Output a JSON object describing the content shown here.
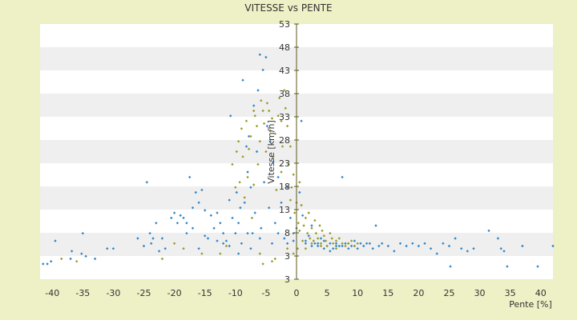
{
  "chart_data": {
    "type": "scatter",
    "title": "VITESSE vs PENTE",
    "xlabel": "Pente [%]",
    "ylabel": "Vitesse [km/h]",
    "xlim": [
      -42,
      42
    ],
    "ylim": [
      3,
      53
    ],
    "x_ticks": [
      "-40",
      "-35",
      "-30",
      "-25",
      "-20",
      "-15",
      "-10",
      "-5",
      "0",
      "5",
      "10",
      "15",
      "20",
      "25",
      "30",
      "35",
      "40"
    ],
    "y_ticks": [
      "3",
      "3",
      "8",
      "13",
      "18",
      "23",
      "28",
      "33",
      "38",
      "43",
      "48",
      "53"
    ],
    "grid": "horizontal alternating bands",
    "colors": {
      "background": "#eef0c6",
      "plot": "#ffffff",
      "band": "#efefef",
      "series_blue": "#2f86c9",
      "series_olive": "#9a9a28",
      "axis": "#5a5a1a"
    },
    "series": [
      {
        "color": "#2f86c9",
        "points": [
          [
            -41.5,
            6.0
          ],
          [
            -40.8,
            6.0
          ],
          [
            -40.2,
            6.5
          ],
          [
            -39.5,
            10.5
          ],
          [
            -37.0,
            7.0
          ],
          [
            -36.8,
            8.5
          ],
          [
            -35.2,
            8.0
          ],
          [
            -35.0,
            12.0
          ],
          [
            -34.5,
            7.5
          ],
          [
            -33.0,
            7.0
          ],
          [
            -31.0,
            9.0
          ],
          [
            -30.0,
            9.0
          ],
          [
            -26.0,
            11.0
          ],
          [
            -25.0,
            9.5
          ],
          [
            -24.5,
            22.0
          ],
          [
            -24.0,
            12.0
          ],
          [
            -23.8,
            10.0
          ],
          [
            -23.5,
            11.0
          ],
          [
            -23.0,
            14.0
          ],
          [
            -22.5,
            8.5
          ],
          [
            -22.0,
            11.0
          ],
          [
            -21.5,
            9.0
          ],
          [
            -20.0,
            16.0
          ],
          [
            -19.5,
            14.0
          ],
          [
            -19.0,
            15.5
          ],
          [
            -18.5,
            15.0
          ],
          [
            -18.0,
            14.0
          ],
          [
            -17.5,
            23.0
          ],
          [
            -17.0,
            17.0
          ],
          [
            -16.5,
            20.0
          ],
          [
            -16.0,
            18.0
          ],
          [
            -15.5,
            20.5
          ],
          [
            -15.0,
            16.5
          ],
          [
            -14.5,
            11.0
          ],
          [
            -14.0,
            15.5
          ],
          [
            -13.5,
            13.0
          ],
          [
            -13.0,
            16.0
          ],
          [
            -12.5,
            14.0
          ],
          [
            -12.0,
            12.0
          ],
          [
            -11.5,
            10.5
          ],
          [
            -11.0,
            18.5
          ],
          [
            -10.8,
            35.0
          ],
          [
            -10.5,
            15.0
          ],
          [
            -10.0,
            12.0
          ],
          [
            -9.8,
            20.0
          ],
          [
            -9.5,
            14.0
          ],
          [
            -9.2,
            17.0
          ],
          [
            -9.0,
            10.0
          ],
          [
            -8.8,
            42.0
          ],
          [
            -8.5,
            18.0
          ],
          [
            -8.2,
            29.0
          ],
          [
            -8.0,
            24.0
          ],
          [
            -7.8,
            31.0
          ],
          [
            -7.5,
            21.0
          ],
          [
            -7.2,
            12.0
          ],
          [
            -7.0,
            37.0
          ],
          [
            -6.8,
            16.0
          ],
          [
            -6.5,
            28.0
          ],
          [
            -6.3,
            40.0
          ],
          [
            -6.0,
            47.0
          ],
          [
            -5.8,
            13.0
          ],
          [
            -5.5,
            44.0
          ],
          [
            -5.3,
            22.0
          ],
          [
            -5.0,
            46.5
          ],
          [
            -4.8,
            33.0
          ],
          [
            -4.5,
            17.0
          ],
          [
            -4.3,
            30.0
          ],
          [
            -4.0,
            10.0
          ],
          [
            -3.8,
            26.0
          ],
          [
            -3.5,
            14.0
          ],
          [
            -3.0,
            23.0
          ],
          [
            -2.5,
            18.0
          ],
          [
            -2.0,
            11.0
          ],
          [
            -1.5,
            21.0
          ],
          [
            -1.0,
            15.0
          ],
          [
            -0.5,
            12.0
          ],
          [
            0.0,
            13.0
          ],
          [
            0.5,
            20.0
          ],
          [
            0.8,
            34.0
          ],
          [
            1.0,
            15.5
          ],
          [
            1.5,
            10.0
          ],
          [
            2.0,
            11.5
          ],
          [
            2.5,
            13.5
          ],
          [
            3.0,
            10.0
          ],
          [
            3.5,
            9.5
          ],
          [
            4.0,
            11.0
          ],
          [
            4.5,
            10.5
          ],
          [
            5.0,
            9.5
          ],
          [
            5.5,
            8.5
          ],
          [
            6.0,
            9.0
          ],
          [
            6.5,
            10.0
          ],
          [
            7.0,
            9.5
          ],
          [
            7.5,
            23.0
          ],
          [
            8.0,
            10.0
          ],
          [
            8.5,
            9.0
          ],
          [
            9.0,
            9.5
          ],
          [
            9.5,
            10.5
          ],
          [
            10.0,
            9.0
          ],
          [
            10.5,
            10.0
          ],
          [
            11.0,
            9.5
          ],
          [
            12.0,
            10.0
          ],
          [
            12.5,
            9.0
          ],
          [
            13.0,
            13.5
          ],
          [
            13.5,
            9.5
          ],
          [
            14.0,
            10.0
          ],
          [
            15.0,
            9.5
          ],
          [
            16.0,
            8.5
          ],
          [
            17.0,
            10.0
          ],
          [
            18.0,
            9.5
          ],
          [
            19.0,
            10.0
          ],
          [
            20.0,
            9.5
          ],
          [
            21.0,
            10.0
          ],
          [
            22.0,
            9.0
          ],
          [
            23.0,
            8.0
          ],
          [
            24.0,
            10.0
          ],
          [
            25.0,
            9.5
          ],
          [
            25.2,
            5.5
          ],
          [
            26.0,
            11.0
          ],
          [
            27.0,
            9.0
          ],
          [
            28.0,
            8.5
          ],
          [
            29.0,
            9.0
          ],
          [
            31.5,
            12.5
          ],
          [
            33.0,
            11.0
          ],
          [
            33.5,
            9.0
          ],
          [
            34.0,
            8.5
          ],
          [
            34.5,
            5.5
          ],
          [
            37.0,
            9.5
          ],
          [
            39.5,
            5.5
          ],
          [
            42.0,
            9.5
          ],
          [
            -12.0,
            10.0
          ],
          [
            -16.0,
            9.0
          ],
          [
            -18.0,
            12.0
          ],
          [
            -20.5,
            15.0
          ],
          [
            -8.0,
            12.0
          ],
          [
            -6.0,
            11.0
          ],
          [
            -7.5,
            9.0
          ],
          [
            -9.5,
            8.0
          ],
          [
            -11.0,
            9.5
          ],
          [
            -13.0,
            10.5
          ],
          [
            -15.0,
            11.5
          ],
          [
            -17.0,
            13.0
          ],
          [
            -3.0,
            12.0
          ],
          [
            -1.5,
            10.0
          ],
          [
            -0.5,
            10.5
          ],
          [
            1.5,
            10.5
          ],
          [
            2.5,
            9.5
          ],
          [
            3.5,
            10.0
          ],
          [
            4.5,
            9.0
          ],
          [
            5.5,
            10.0
          ],
          [
            6.5,
            9.5
          ],
          [
            7.5,
            9.5
          ],
          [
            8.5,
            10.0
          ],
          [
            9.5,
            9.5
          ],
          [
            11.5,
            10.0
          ]
        ]
      },
      {
        "color": "#9a9a28",
        "points": [
          [
            -38.5,
            7.0
          ],
          [
            -36.0,
            6.5
          ],
          [
            -22.0,
            7.0
          ],
          [
            -20.0,
            10.0
          ],
          [
            -18.5,
            9.0
          ],
          [
            -15.5,
            8.0
          ],
          [
            -12.5,
            8.0
          ],
          [
            -11.5,
            9.5
          ],
          [
            -10.5,
            25.5
          ],
          [
            -10.0,
            21.0
          ],
          [
            -9.8,
            28.0
          ],
          [
            -9.5,
            30.0
          ],
          [
            -9.3,
            22.0
          ],
          [
            -9.0,
            32.5
          ],
          [
            -8.8,
            27.0
          ],
          [
            -8.5,
            19.0
          ],
          [
            -8.2,
            34.0
          ],
          [
            -8.0,
            23.0
          ],
          [
            -7.8,
            28.5
          ],
          [
            -7.5,
            31.0
          ],
          [
            -7.3,
            15.0
          ],
          [
            -7.0,
            36.0
          ],
          [
            -6.8,
            35.0
          ],
          [
            -6.5,
            33.0
          ],
          [
            -6.3,
            25.5
          ],
          [
            -6.0,
            30.0
          ],
          [
            -5.8,
            38.0
          ],
          [
            -5.5,
            36.0
          ],
          [
            -5.3,
            33.5
          ],
          [
            -5.0,
            28.0
          ],
          [
            -4.8,
            37.5
          ],
          [
            -4.5,
            36.0
          ],
          [
            -4.3,
            32.0
          ],
          [
            -4.0,
            34.5
          ],
          [
            -3.8,
            27.0
          ],
          [
            -3.5,
            31.5
          ],
          [
            -3.3,
            20.5
          ],
          [
            -3.0,
            35.0
          ],
          [
            -2.8,
            38.5
          ],
          [
            -2.5,
            34.0
          ],
          [
            -2.3,
            29.0
          ],
          [
            -2.0,
            40.0
          ],
          [
            -1.8,
            36.5
          ],
          [
            -1.5,
            33.0
          ],
          [
            -1.3,
            25.5
          ],
          [
            -1.0,
            29.0
          ],
          [
            -0.8,
            21.0
          ],
          [
            -0.5,
            23.5
          ],
          [
            -0.3,
            16.0
          ],
          [
            0.0,
            18.0
          ],
          [
            0.2,
            9.0
          ],
          [
            0.3,
            14.0
          ],
          [
            0.5,
            12.5
          ],
          [
            0.8,
            17.5
          ],
          [
            1.0,
            10.5
          ],
          [
            1.2,
            13.5
          ],
          [
            1.5,
            15.0
          ],
          [
            1.8,
            12.0
          ],
          [
            2.0,
            16.0
          ],
          [
            2.2,
            11.0
          ],
          [
            2.5,
            13.0
          ],
          [
            2.8,
            10.5
          ],
          [
            3.0,
            14.5
          ],
          [
            3.2,
            12.0
          ],
          [
            3.5,
            11.0
          ],
          [
            3.8,
            13.5
          ],
          [
            4.0,
            10.0
          ],
          [
            4.2,
            12.5
          ],
          [
            4.5,
            11.5
          ],
          [
            4.8,
            10.5
          ],
          [
            5.0,
            9.5
          ],
          [
            5.5,
            12.0
          ],
          [
            5.8,
            11.0
          ],
          [
            6.0,
            10.0
          ],
          [
            6.5,
            10.5
          ],
          [
            7.0,
            11.0
          ],
          [
            7.5,
            10.0
          ],
          [
            8.0,
            9.5
          ],
          [
            8.5,
            10.0
          ],
          [
            9.0,
            10.5
          ],
          [
            9.5,
            9.5
          ],
          [
            10.0,
            10.0
          ],
          [
            -6.0,
            8.0
          ],
          [
            -4.0,
            6.5
          ],
          [
            -5.5,
            6.0
          ],
          [
            -3.5,
            7.0
          ],
          [
            -1.5,
            9.0
          ],
          [
            -0.5,
            8.0
          ],
          [
            1.5,
            9.0
          ],
          [
            2.5,
            10.0
          ],
          [
            4.0,
            9.5
          ],
          [
            6.5,
            9.0
          ],
          [
            -2.5,
            24.0
          ],
          [
            -1.0,
            18.5
          ],
          [
            0.5,
            22.0
          ],
          [
            -7.0,
            21.5
          ]
        ]
      }
    ]
  }
}
